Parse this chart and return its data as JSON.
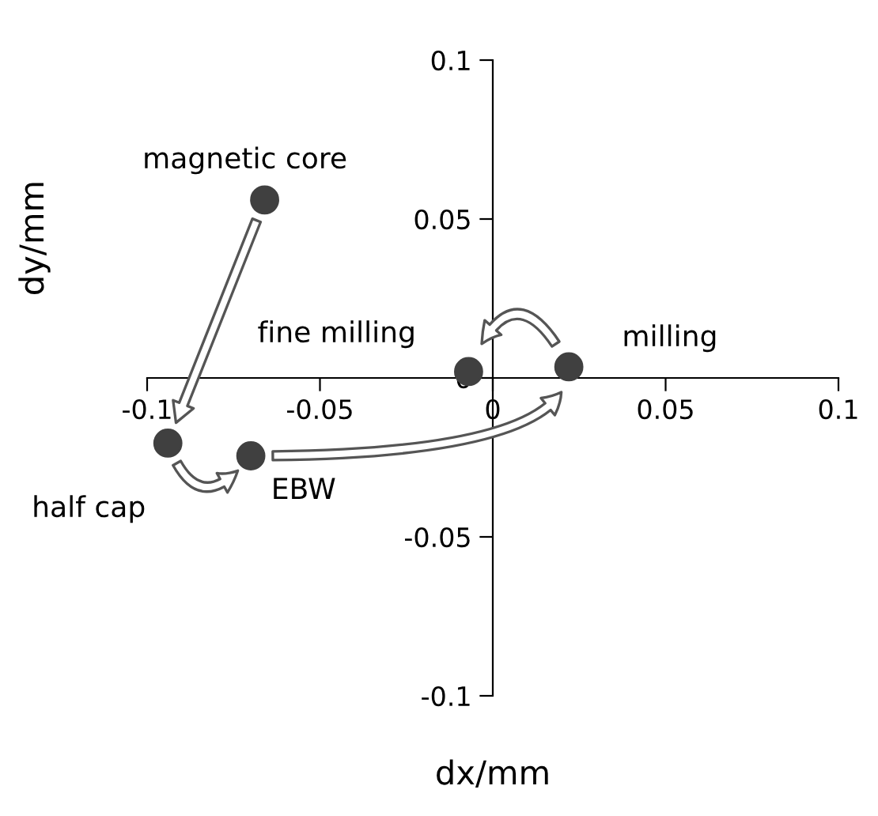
{
  "chart_data": {
    "type": "scatter",
    "xlabel": "dx/mm",
    "ylabel": "dy/mm",
    "x": [
      -0.066,
      -0.094,
      -0.07,
      0.022,
      -0.007
    ],
    "series": [
      {
        "color": "#404040",
        "values": [
          0.056,
          -0.0205,
          -0.0245,
          0.0035,
          0.002
        ]
      }
    ],
    "marker": "circle",
    "annotations": [
      {
        "text": "magnetic core",
        "x": -0.066,
        "y": 0.056
      },
      {
        "text": "half cap",
        "x": -0.094,
        "y": -0.0205
      },
      {
        "text": "EBW",
        "x": -0.07,
        "y": -0.0245
      },
      {
        "text": "milling",
        "x": 0.022,
        "y": 0.0035
      },
      {
        "text": "fine milling",
        "x": -0.007,
        "y": 0.002
      }
    ],
    "xlim": [
      -0.1,
      0.1
    ],
    "ylim": [
      -0.1,
      0.1
    ],
    "xticks": [
      -0.1,
      -0.05,
      0,
      0.05,
      0.1
    ],
    "yticks": [
      -0.1,
      -0.05,
      0,
      0.05,
      0.1
    ],
    "grid": false,
    "legend": false
  }
}
